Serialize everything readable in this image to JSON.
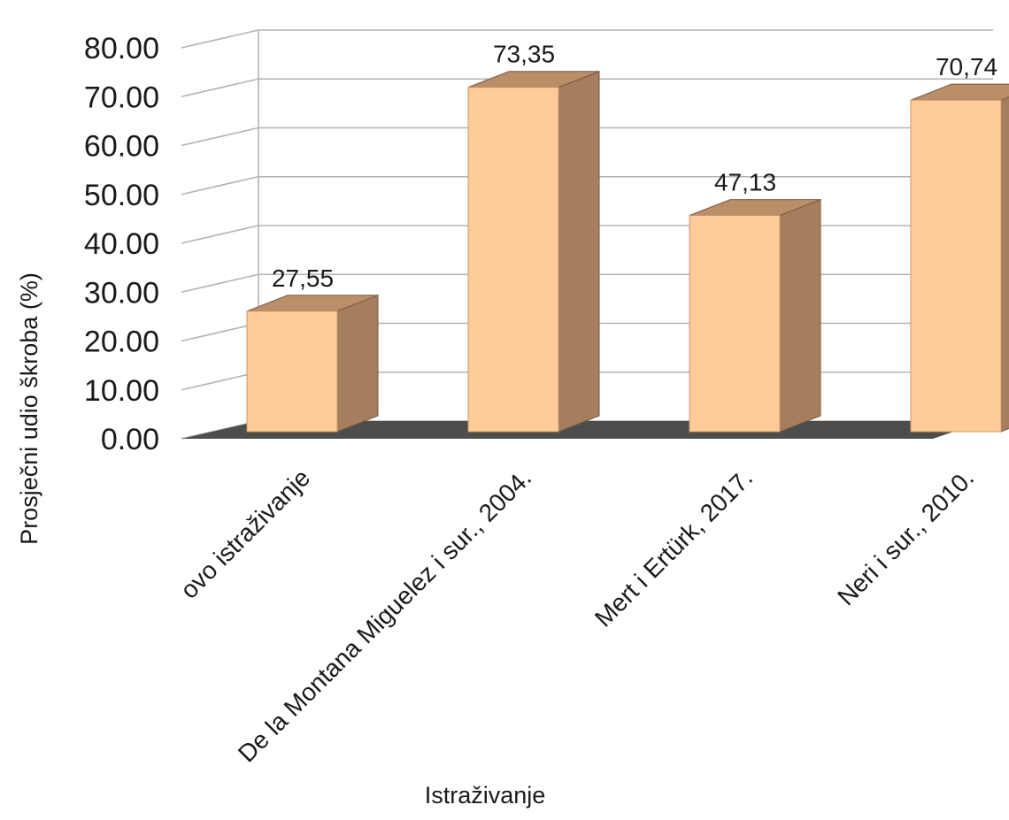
{
  "chart_data": {
    "type": "bar",
    "style": "3d-column",
    "categories": [
      "ovo istraživanje",
      "De la Montana Miguelez i sur., 2004.",
      "Mert i Ertürk, 2017.",
      "Neri i sur., 2010."
    ],
    "values": [
      27.55,
      73.35,
      47.13,
      70.74
    ],
    "data_labels": [
      "27,55",
      "73,35",
      "47,13",
      "70,74"
    ],
    "yticks": [
      "0.00",
      "10.00",
      "20.00",
      "30.00",
      "40.00",
      "50.00",
      "60.00",
      "70.00",
      "80.00"
    ],
    "ylim": [
      0,
      80
    ],
    "xlabel": "Istraživanje",
    "ylabel": "Prosječni udio škroba (%)",
    "grid": true,
    "legend": "none",
    "colors": {
      "bar_front": "#FFCC99",
      "bar_side": "#A57E5E",
      "bar_top": "#B98E68",
      "floor": "#4D4D4D",
      "grid": "#B3B3B3"
    }
  }
}
